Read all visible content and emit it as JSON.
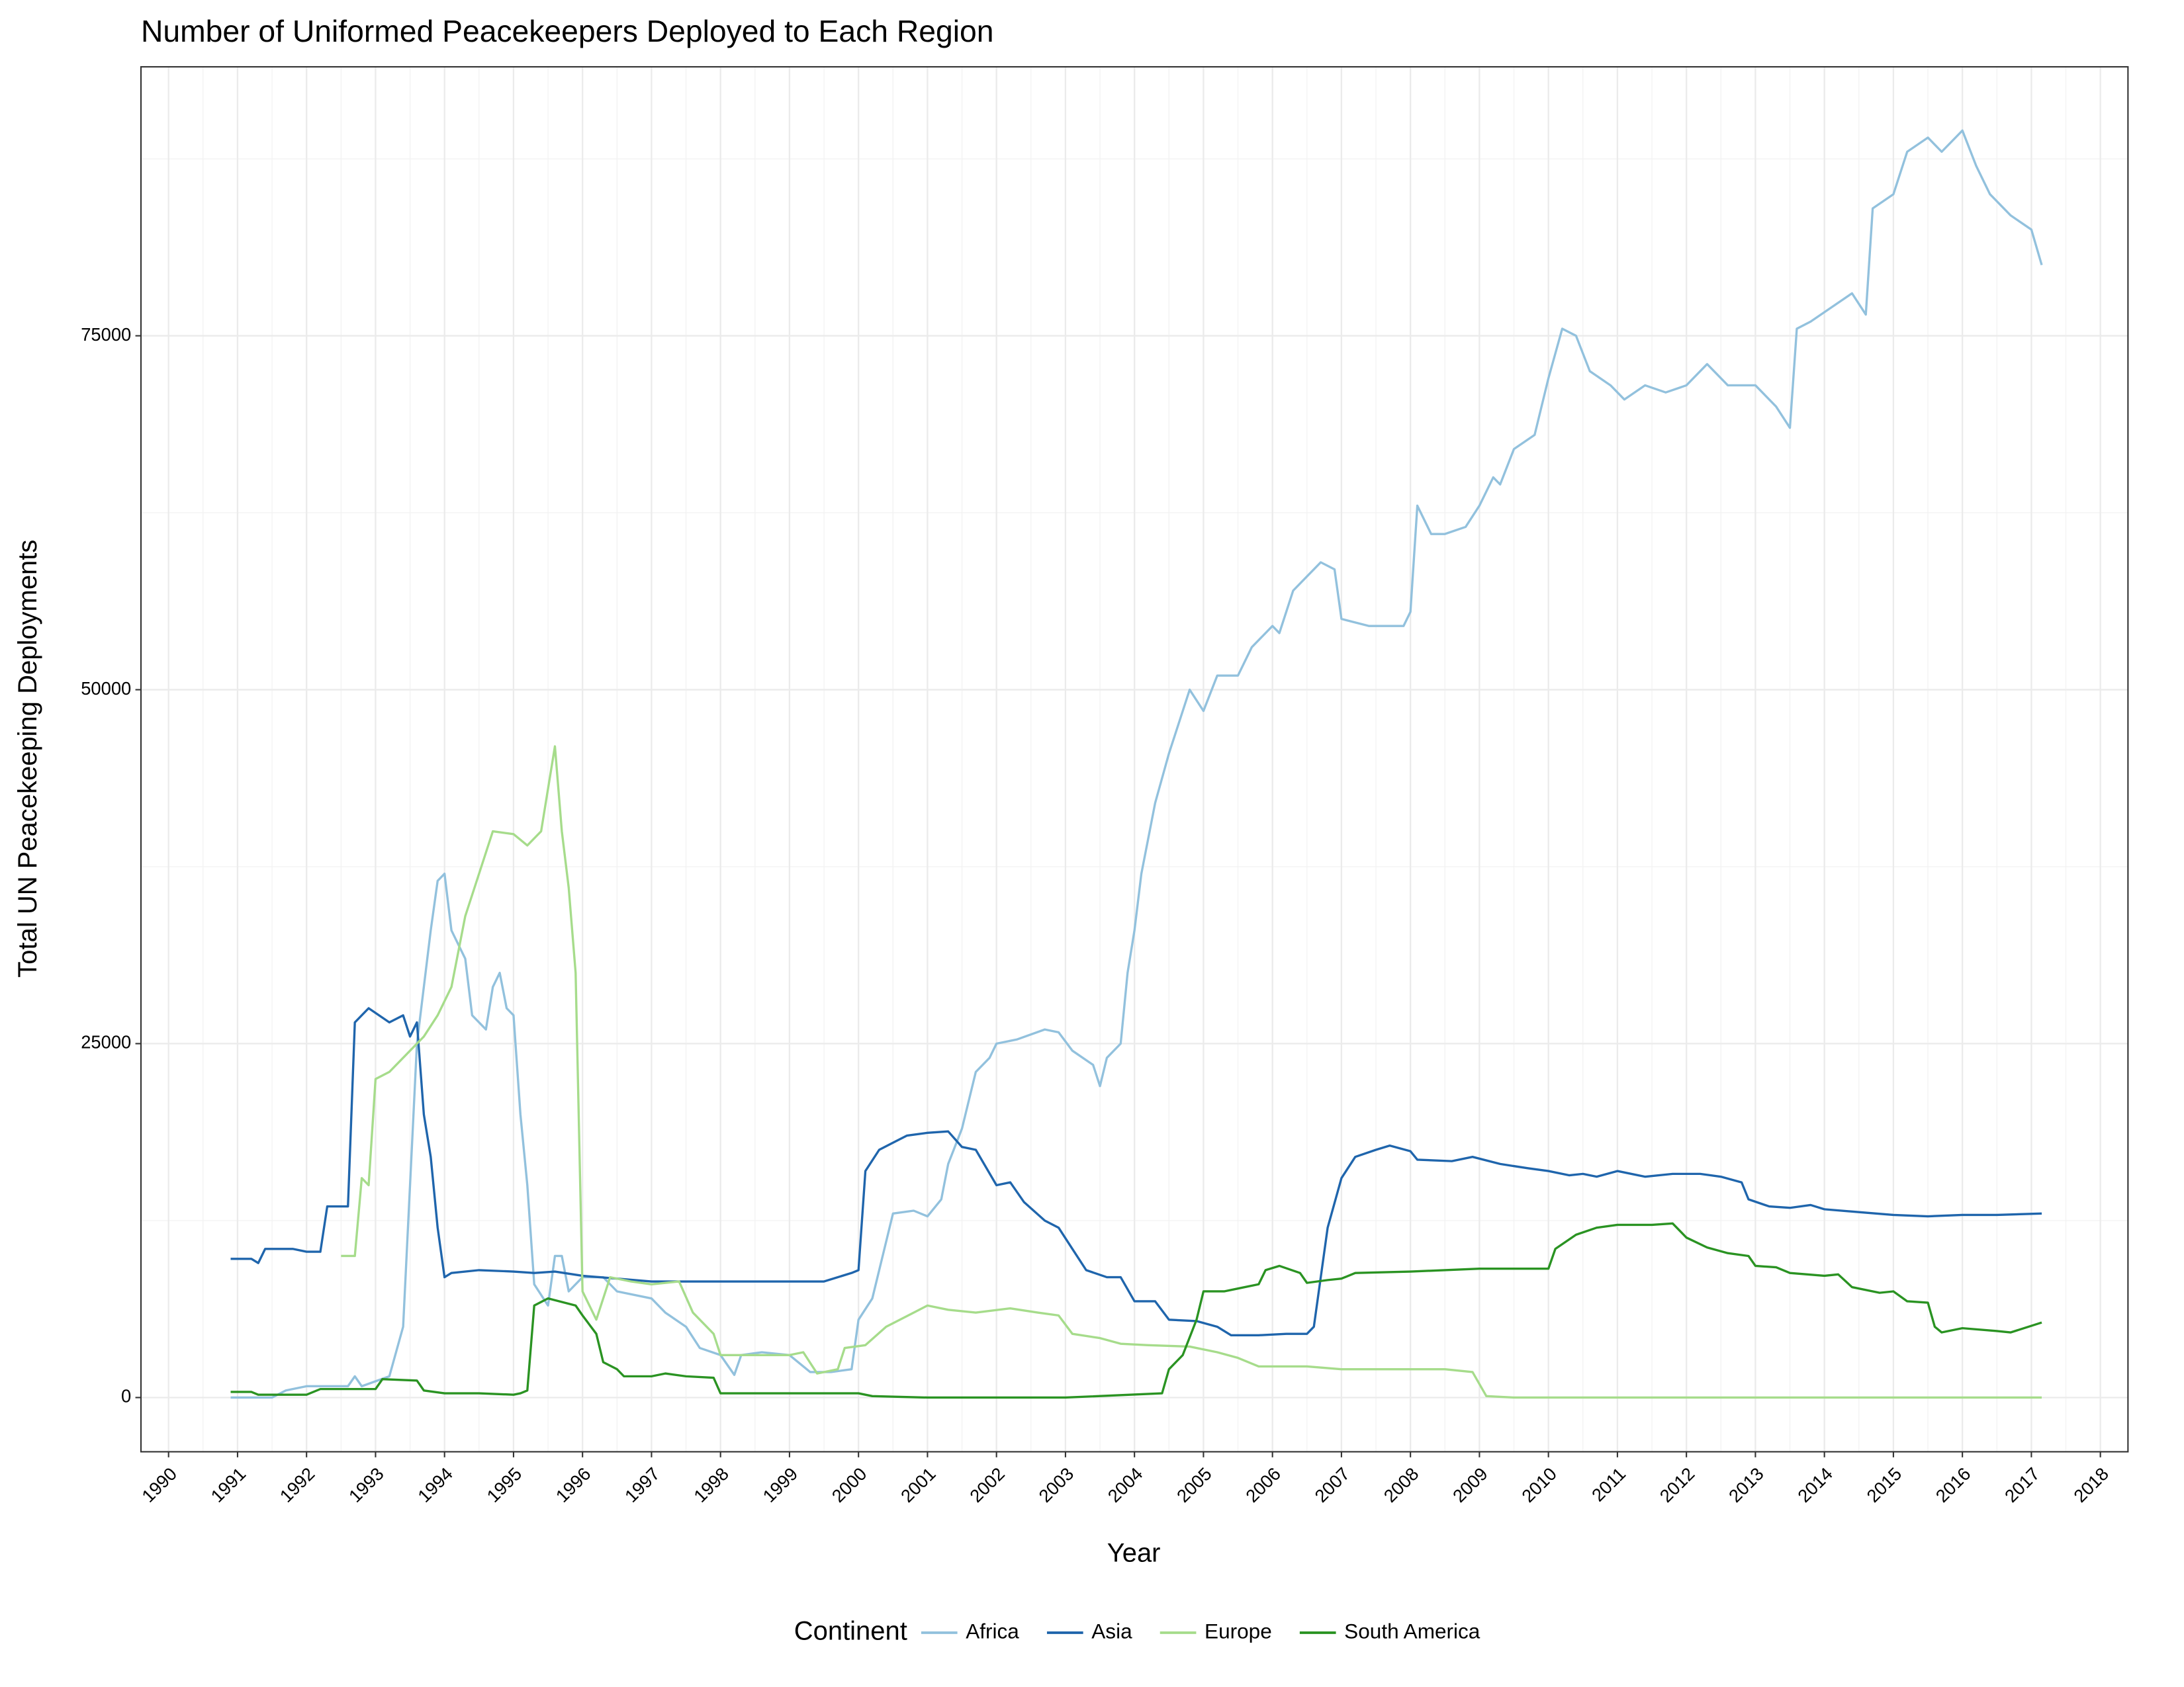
{
  "chart_data": {
    "type": "line",
    "title": "Number of Uniformed Peacekeepers Deployed to Each Region",
    "x_label": "Year",
    "y_label": "Total UN Peacekeeping Deployments",
    "legend_title": "Continent",
    "legend_position": "bottom",
    "grid": true,
    "xlim": [
      1989.6,
      2018.4
    ],
    "ylim": [
      -3830,
      94000
    ],
    "xticks": [
      1990,
      1991,
      1992,
      1993,
      1994,
      1995,
      1996,
      1997,
      1998,
      1999,
      2000,
      2001,
      2002,
      2003,
      2004,
      2005,
      2006,
      2007,
      2008,
      2009,
      2010,
      2011,
      2012,
      2013,
      2014,
      2015,
      2016,
      2017,
      2018
    ],
    "yticks": [
      0,
      25000,
      50000,
      75000
    ],
    "series": [
      {
        "name": "Africa",
        "color": "#92c1dd",
        "x": [
          1990.9,
          1991.5,
          1991.7,
          1992,
          1992.6,
          1992.7,
          1992.8,
          1993.2,
          1993.4,
          1993.6,
          1993.8,
          1993.9,
          1994.0,
          1994.1,
          1994.3,
          1994.4,
          1994.6,
          1994.7,
          1994.8,
          1994.9,
          1995.0,
          1995.1,
          1995.2,
          1995.3,
          1995.5,
          1995.6,
          1995.7,
          1995.8,
          1996.0,
          1996.3,
          1996.5,
          1997,
          1997.2,
          1997.5,
          1997.7,
          1998,
          1998.2,
          1998.3,
          1998.6,
          1999,
          1999.3,
          1999.6,
          1999.9,
          2000,
          2000.2,
          2000.4,
          2000.5,
          2000.8,
          2001,
          2001.2,
          2001.3,
          2001.5,
          2001.7,
          2001.9,
          2002.0,
          2002.3,
          2002.7,
          2002.9,
          2003.1,
          2003.4,
          2003.5,
          2003.6,
          2003.8,
          2003.9,
          2004.0,
          2004.1,
          2004.3,
          2004.5,
          2004.6,
          2004.8,
          2005,
          2005.2,
          2005.5,
          2005.7,
          2006,
          2006.1,
          2006.3,
          2006.5,
          2006.7,
          2006.9,
          2007,
          2007.4,
          2007.9,
          2008.0,
          2008.1,
          2008.3,
          2008.5,
          2008.8,
          2009,
          2009.2,
          2009.3,
          2009.5,
          2009.8,
          2010.0,
          2010.2,
          2010.4,
          2010.6,
          2010.9,
          2011.1,
          2011.4,
          2011.7,
          2012.0,
          2012.3,
          2012.6,
          2013,
          2013.3,
          2013.5,
          2013.6,
          2013.8,
          2014.1,
          2014.4,
          2014.6,
          2014.7,
          2015.0,
          2015.2,
          2015.5,
          2015.7,
          2016.0,
          2016.2,
          2016.4,
          2016.7,
          2017.0,
          2017.15
        ],
        "values": [
          0,
          0,
          500,
          800,
          800,
          1500,
          800,
          1500,
          5000,
          25000,
          33000,
          36500,
          37000,
          33000,
          31000,
          27000,
          26000,
          29000,
          30000,
          27500,
          27000,
          20000,
          15000,
          8000,
          6500,
          10000,
          10000,
          7500,
          8500,
          8500,
          7500,
          7000,
          6000,
          5000,
          3500,
          3000,
          1600,
          3000,
          3200,
          3000,
          1800,
          1800,
          2000,
          5500,
          7000,
          11000,
          13000,
          13200,
          12800,
          14000,
          16500,
          19000,
          23000,
          24000,
          25000,
          25300,
          26000,
          25800,
          24500,
          23500,
          22000,
          24000,
          25000,
          30000,
          33000,
          37000,
          42000,
          45500,
          47000,
          50000,
          48500,
          51000,
          51000,
          53000,
          54500,
          54000,
          57000,
          58000,
          59000,
          58500,
          55000,
          54500,
          54500,
          55500,
          63000,
          61000,
          61000,
          61500,
          63000,
          65000,
          64500,
          67000,
          68000,
          72000,
          75500,
          75000,
          72500,
          71500,
          70500,
          71500,
          71000,
          71500,
          73000,
          71500,
          71500,
          70000,
          68500,
          75500,
          76000,
          77000,
          78000,
          76500,
          84000,
          85000,
          88000,
          89000,
          88000,
          89500,
          87000,
          85000,
          83500,
          82500,
          80000
        ]
      },
      {
        "name": "Asia",
        "color": "#1f65ac",
        "x": [
          1990.9,
          1991.2,
          1991.3,
          1991.4,
          1991.8,
          1992.0,
          1992.2,
          1992.3,
          1992.6,
          1992.7,
          1992.9,
          1993.2,
          1993.4,
          1993.5,
          1993.6,
          1993.7,
          1993.8,
          1993.9,
          1994.0,
          1994.1,
          1994.5,
          1995,
          1995.3,
          1995.6,
          1996,
          1996.5,
          1997,
          1998,
          1998.8,
          1999.5,
          1999.9,
          2000.0,
          2000.1,
          2000.3,
          2000.5,
          2000.7,
          2001,
          2001.3,
          2001.5,
          2001.7,
          2002.0,
          2002.2,
          2002.4,
          2002.7,
          2002.9,
          2003.1,
          2003.3,
          2003.6,
          2003.8,
          2004.0,
          2004.3,
          2004.5,
          2004.9,
          2005.2,
          2005.4,
          2005.8,
          2006.2,
          2006.5,
          2006.6,
          2006.8,
          2007,
          2007.2,
          2007.5,
          2007.7,
          2008,
          2008.1,
          2008.6,
          2008.9,
          2009.3,
          2009.7,
          2010,
          2010.3,
          2010.5,
          2010.7,
          2011,
          2011.4,
          2011.8,
          2012.2,
          2012.5,
          2012.8,
          2012.9,
          2013.2,
          2013.5,
          2013.8,
          2014,
          2014.5,
          2015,
          2015.5,
          2016,
          2016.5,
          2017.15
        ],
        "values": [
          9800,
          9800,
          9500,
          10500,
          10500,
          10300,
          10300,
          13500,
          13500,
          26500,
          27500,
          26500,
          27000,
          25500,
          26500,
          20000,
          17000,
          12000,
          8500,
          8800,
          9000,
          8900,
          8800,
          8900,
          8600,
          8400,
          8200,
          8200,
          8200,
          8200,
          8800,
          9000,
          16000,
          17500,
          18000,
          18500,
          18700,
          18800,
          17700,
          17500,
          15000,
          15200,
          13800,
          12500,
          12000,
          10500,
          9000,
          8500,
          8500,
          6800,
          6800,
          5500,
          5400,
          5000,
          4400,
          4400,
          4500,
          4500,
          5000,
          12000,
          15500,
          17000,
          17500,
          17800,
          17400,
          16800,
          16700,
          17000,
          16500,
          16200,
          16000,
          15700,
          15800,
          15600,
          16000,
          15600,
          15800,
          15800,
          15600,
          15200,
          14000,
          13500,
          13400,
          13600,
          13300,
          13100,
          12900,
          12800,
          12900,
          12900,
          13000
        ]
      },
      {
        "name": "Europe",
        "color": "#a6dc8b",
        "x": [
          1992.5,
          1992.7,
          1992.8,
          1992.9,
          1993.0,
          1993.2,
          1993.4,
          1993.7,
          1993.9,
          1994.1,
          1994.3,
          1994.5,
          1994.7,
          1995.0,
          1995.2,
          1995.4,
          1995.6,
          1995.7,
          1995.8,
          1995.9,
          1996.0,
          1996.2,
          1996.4,
          1996.7,
          1997,
          1997.4,
          1997.6,
          1997.9,
          1998,
          1998.2,
          1999,
          1999.2,
          1999.4,
          1999.7,
          1999.8,
          2000.1,
          2000.4,
          2000.8,
          2001,
          2001.3,
          2001.7,
          2002.2,
          2002.6,
          2002.9,
          2003.1,
          2003.5,
          2003.8,
          2004.2,
          2004.8,
          2005.2,
          2005.5,
          2005.8,
          2006.5,
          2007.0,
          2007.5,
          2008,
          2008.5,
          2008.9,
          2009.1,
          2009.5,
          2017.15
        ],
        "values": [
          10000,
          10000,
          15500,
          15000,
          22500,
          23000,
          24000,
          25500,
          27000,
          29000,
          34000,
          37000,
          40000,
          39800,
          39000,
          40000,
          46000,
          40000,
          36000,
          30000,
          7500,
          5500,
          8500,
          8200,
          8000,
          8200,
          6000,
          4500,
          3000,
          3000,
          3000,
          3200,
          1700,
          2000,
          3500,
          3700,
          5000,
          6000,
          6500,
          6200,
          6000,
          6300,
          6000,
          5800,
          4500,
          4200,
          3800,
          3700,
          3600,
          3200,
          2800,
          2200,
          2200,
          2000,
          2000,
          2000,
          2000,
          1800,
          100,
          0,
          0
        ]
      },
      {
        "name": "South America",
        "color": "#2a9322",
        "x": [
          1990.9,
          1991.2,
          1991.3,
          1992,
          1992.2,
          1993,
          1993.1,
          1993.6,
          1993.7,
          1994,
          1994.5,
          1995,
          1995.1,
          1995.2,
          1995.3,
          1995.5,
          1995.9,
          1996,
          1996.2,
          1996.3,
          1996.5,
          1996.6,
          1997,
          1997.2,
          1997.5,
          1997.9,
          1998,
          1999,
          2000,
          2000.2,
          2001,
          2003,
          2004.4,
          2004.5,
          2004.7,
          2004.9,
          2005.0,
          2005.3,
          2005.5,
          2005.8,
          2005.9,
          2006.1,
          2006.4,
          2006.5,
          2006.8,
          2007,
          2007.2,
          2008,
          2009,
          2010.0,
          2010.1,
          2010.4,
          2010.7,
          2011,
          2011.5,
          2011.8,
          2012,
          2012.3,
          2012.6,
          2012.9,
          2013,
          2013.3,
          2013.5,
          2014,
          2014.2,
          2014.4,
          2014.8,
          2015.0,
          2015.2,
          2015.5,
          2015.6,
          2015.7,
          2016,
          2016.5,
          2016.7,
          2017.15
        ],
        "values": [
          400,
          400,
          200,
          200,
          600,
          600,
          1300,
          1200,
          500,
          300,
          300,
          200,
          300,
          500,
          6500,
          7000,
          6500,
          5800,
          4500,
          2500,
          2000,
          1500,
          1500,
          1700,
          1500,
          1400,
          300,
          300,
          300,
          100,
          0,
          0,
          300,
          2000,
          3000,
          5500,
          7500,
          7500,
          7700,
          8000,
          9000,
          9300,
          8800,
          8100,
          8300,
          8400,
          8800,
          8900,
          9100,
          9100,
          10500,
          11500,
          12000,
          12200,
          12200,
          12300,
          11300,
          10600,
          10200,
          10000,
          9300,
          9200,
          8800,
          8600,
          8700,
          7800,
          7400,
          7500,
          6800,
          6700,
          5000,
          4600,
          4900,
          4700,
          4600,
          5300
        ]
      }
    ]
  }
}
